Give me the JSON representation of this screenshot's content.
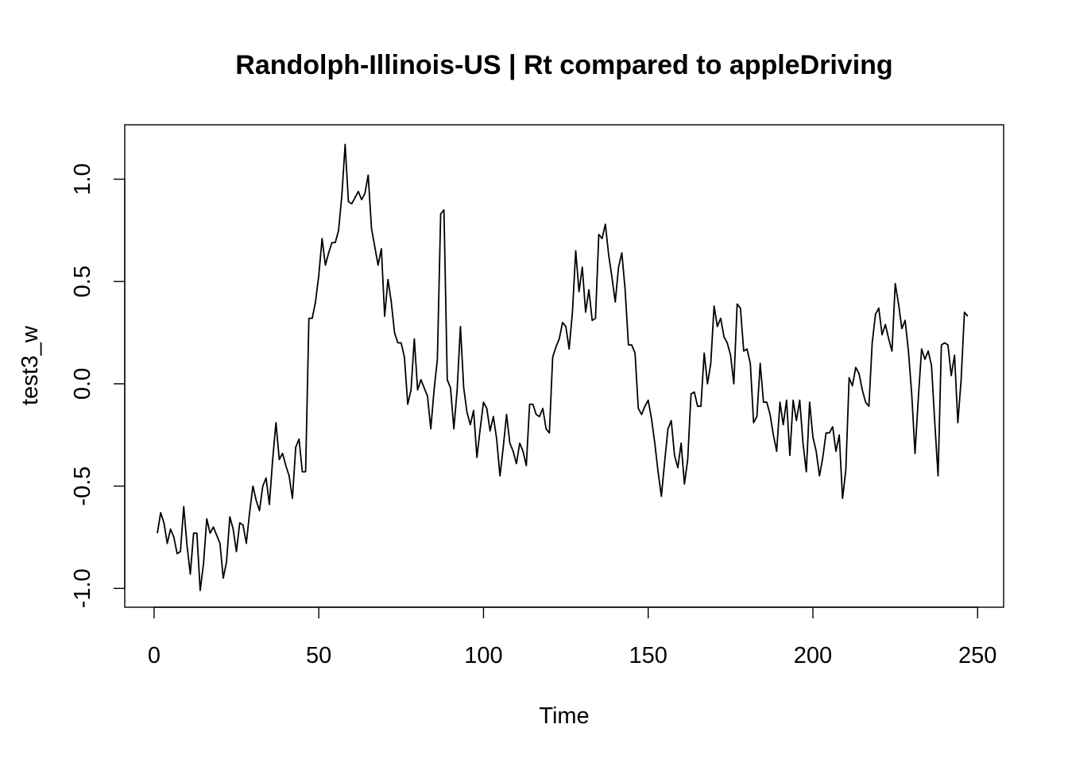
{
  "chart_data": {
    "type": "line",
    "title": "Randolph-Illinois-US | Rt compared to appleDriving",
    "xlabel": "Time",
    "ylabel": "test3_w",
    "xlim": [
      -8.9,
      257.9
    ],
    "ylim": [
      -1.092,
      1.266
    ],
    "x_ticks": [
      0,
      50,
      100,
      150,
      200,
      250
    ],
    "x_tick_labels": [
      "0",
      "50",
      "100",
      "150",
      "200",
      "250"
    ],
    "y_ticks": [
      -1.0,
      -0.5,
      0.0,
      0.5,
      1.0
    ],
    "y_tick_labels": [
      "-1.0",
      "-0.5",
      "0.0",
      "0.5",
      "1.0"
    ],
    "grid": false,
    "legend": "none",
    "line_color": "#000000",
    "x_start": 1,
    "x_step": 1,
    "series": [
      {
        "values": [
          -0.73,
          -0.63,
          -0.68,
          -0.78,
          -0.71,
          -0.75,
          -0.83,
          -0.82,
          -0.6,
          -0.79,
          -0.93,
          -0.73,
          -0.73,
          -1.01,
          -0.88,
          -0.66,
          -0.73,
          -0.7,
          -0.74,
          -0.78,
          -0.95,
          -0.87,
          -0.65,
          -0.71,
          -0.82,
          -0.68,
          -0.69,
          -0.78,
          -0.63,
          -0.5,
          -0.57,
          -0.62,
          -0.5,
          -0.46,
          -0.59,
          -0.37,
          -0.19,
          -0.37,
          -0.34,
          -0.4,
          -0.45,
          -0.56,
          -0.31,
          -0.27,
          -0.43,
          -0.43,
          0.32,
          0.32,
          0.4,
          0.53,
          0.71,
          0.58,
          0.64,
          0.69,
          0.69,
          0.75,
          0.92,
          1.17,
          0.89,
          0.88,
          0.91,
          0.94,
          0.9,
          0.93,
          1.02,
          0.76,
          0.67,
          0.58,
          0.66,
          0.33,
          0.51,
          0.4,
          0.25,
          0.2,
          0.2,
          0.13,
          -0.1,
          -0.03,
          0.22,
          -0.03,
          0.02,
          -0.02,
          -0.06,
          -0.22,
          -0.03,
          0.12,
          0.83,
          0.85,
          0.02,
          -0.02,
          -0.22,
          -0.03,
          0.28,
          -0.02,
          -0.14,
          -0.2,
          -0.13,
          -0.36,
          -0.22,
          -0.09,
          -0.12,
          -0.23,
          -0.16,
          -0.27,
          -0.45,
          -0.31,
          -0.15,
          -0.29,
          -0.33,
          -0.39,
          -0.29,
          -0.33,
          -0.4,
          -0.1,
          -0.1,
          -0.15,
          -0.16,
          -0.12,
          -0.22,
          -0.24,
          0.13,
          0.18,
          0.22,
          0.3,
          0.28,
          0.17,
          0.35,
          0.65,
          0.45,
          0.57,
          0.35,
          0.46,
          0.31,
          0.32,
          0.73,
          0.71,
          0.78,
          0.63,
          0.52,
          0.4,
          0.57,
          0.64,
          0.46,
          0.19,
          0.19,
          0.15,
          -0.12,
          -0.15,
          -0.11,
          -0.08,
          -0.17,
          -0.29,
          -0.43,
          -0.55,
          -0.38,
          -0.22,
          -0.18,
          -0.35,
          -0.41,
          -0.29,
          -0.49,
          -0.37,
          -0.05,
          -0.04,
          -0.11,
          -0.11,
          0.15,
          0.0,
          0.1,
          0.38,
          0.28,
          0.32,
          0.23,
          0.2,
          0.14,
          0.0,
          0.39,
          0.37,
          0.16,
          0.17,
          0.1,
          -0.19,
          -0.16,
          0.1,
          -0.09,
          -0.09,
          -0.15,
          -0.25,
          -0.33,
          -0.09,
          -0.2,
          -0.08,
          -0.35,
          -0.08,
          -0.18,
          -0.08,
          -0.29,
          -0.43,
          -0.09,
          -0.26,
          -0.33,
          -0.45,
          -0.36,
          -0.24,
          -0.24,
          -0.21,
          -0.33,
          -0.25,
          -0.56,
          -0.42,
          0.03,
          -0.01,
          0.08,
          0.05,
          -0.03,
          -0.09,
          -0.11,
          0.2,
          0.34,
          0.37,
          0.24,
          0.29,
          0.22,
          0.16,
          0.49,
          0.39,
          0.27,
          0.31,
          0.16,
          -0.05,
          -0.34,
          -0.07,
          0.17,
          0.12,
          0.16,
          0.09,
          -0.19,
          -0.45,
          0.19,
          0.2,
          0.19,
          0.04,
          0.14,
          -0.19,
          0.02,
          0.35,
          0.33
        ]
      }
    ]
  }
}
